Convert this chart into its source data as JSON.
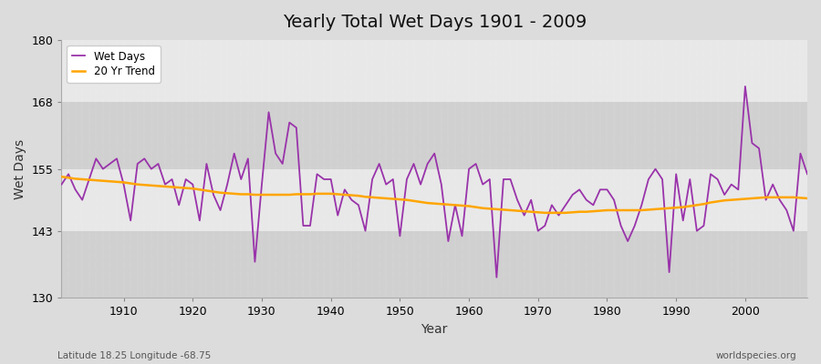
{
  "title": "Yearly Total Wet Days 1901 - 2009",
  "xlabel": "Year",
  "ylabel": "Wet Days",
  "subtitle_left": "Latitude 18.25 Longitude -68.75",
  "subtitle_right": "worldspecies.org",
  "ylim": [
    130,
    180
  ],
  "yticks": [
    130,
    143,
    155,
    168,
    180
  ],
  "bg_color": "#dcdcdc",
  "band_color_light": "#e8e8e8",
  "band_color_dark": "#d0d0d0",
  "wet_days_color": "#9933aa",
  "trend_color": "#ffa500",
  "years": [
    1901,
    1902,
    1903,
    1904,
    1905,
    1906,
    1907,
    1908,
    1909,
    1910,
    1911,
    1912,
    1913,
    1914,
    1915,
    1916,
    1917,
    1918,
    1919,
    1920,
    1921,
    1922,
    1923,
    1924,
    1925,
    1926,
    1927,
    1928,
    1929,
    1930,
    1931,
    1932,
    1933,
    1934,
    1935,
    1936,
    1937,
    1938,
    1939,
    1940,
    1941,
    1942,
    1943,
    1944,
    1945,
    1946,
    1947,
    1948,
    1949,
    1950,
    1951,
    1952,
    1953,
    1954,
    1955,
    1956,
    1957,
    1958,
    1959,
    1960,
    1961,
    1962,
    1963,
    1964,
    1965,
    1966,
    1967,
    1968,
    1969,
    1970,
    1971,
    1972,
    1973,
    1974,
    1975,
    1976,
    1977,
    1978,
    1979,
    1980,
    1981,
    1982,
    1983,
    1984,
    1985,
    1986,
    1987,
    1988,
    1989,
    1990,
    1991,
    1992,
    1993,
    1994,
    1995,
    1996,
    1997,
    1998,
    1999,
    2000,
    2001,
    2002,
    2003,
    2004,
    2005,
    2006,
    2007,
    2008,
    2009
  ],
  "wet_days": [
    152,
    154,
    151,
    149,
    153,
    157,
    155,
    156,
    157,
    152,
    145,
    156,
    157,
    155,
    156,
    152,
    153,
    148,
    153,
    152,
    145,
    156,
    150,
    147,
    152,
    158,
    153,
    157,
    137,
    152,
    166,
    158,
    156,
    164,
    163,
    144,
    144,
    154,
    153,
    153,
    146,
    151,
    149,
    148,
    143,
    153,
    156,
    152,
    153,
    142,
    153,
    156,
    152,
    156,
    158,
    152,
    141,
    148,
    142,
    155,
    156,
    152,
    153,
    134,
    153,
    153,
    149,
    146,
    149,
    143,
    144,
    148,
    146,
    148,
    150,
    151,
    149,
    148,
    151,
    151,
    149,
    144,
    141,
    144,
    148,
    153,
    155,
    153,
    135,
    154,
    145,
    153,
    143,
    144,
    154,
    153,
    150,
    152,
    151,
    171,
    160,
    159,
    149,
    152,
    149,
    147,
    143,
    158,
    154
  ],
  "trend": [
    153.5,
    153.3,
    153.1,
    153.0,
    152.9,
    152.8,
    152.7,
    152.6,
    152.5,
    152.4,
    152.2,
    152.0,
    151.9,
    151.8,
    151.7,
    151.6,
    151.5,
    151.4,
    151.3,
    151.2,
    151.0,
    150.8,
    150.6,
    150.4,
    150.3,
    150.2,
    150.1,
    150.1,
    150.0,
    150.0,
    150.0,
    150.0,
    150.0,
    150.0,
    150.1,
    150.1,
    150.1,
    150.2,
    150.2,
    150.2,
    150.1,
    150.0,
    149.9,
    149.8,
    149.6,
    149.5,
    149.4,
    149.3,
    149.2,
    149.1,
    149.0,
    148.8,
    148.6,
    148.4,
    148.3,
    148.2,
    148.1,
    148.0,
    147.9,
    147.8,
    147.6,
    147.4,
    147.3,
    147.2,
    147.1,
    147.0,
    146.9,
    146.8,
    146.7,
    146.6,
    146.5,
    146.5,
    146.5,
    146.5,
    146.6,
    146.7,
    146.7,
    146.8,
    146.9,
    147.0,
    147.0,
    147.0,
    147.0,
    147.0,
    147.0,
    147.1,
    147.2,
    147.3,
    147.4,
    147.5,
    147.6,
    147.8,
    148.0,
    148.2,
    148.5,
    148.7,
    148.9,
    149.0,
    149.1,
    149.2,
    149.3,
    149.4,
    149.5,
    149.5,
    149.5,
    149.5,
    149.5,
    149.4,
    149.3
  ]
}
